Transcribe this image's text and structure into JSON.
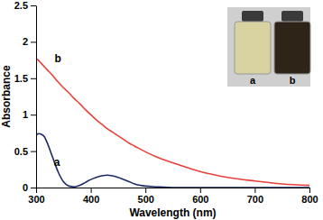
{
  "chart_data": {
    "type": "line",
    "x_label": "Wavelength (nm)",
    "y_label": "Absorbance",
    "x": [
      300,
      305,
      310,
      315,
      320,
      330,
      340,
      350,
      360,
      370,
      380,
      390,
      400,
      410,
      420,
      430,
      440,
      450,
      460,
      470,
      480,
      500,
      520,
      550,
      600,
      650,
      700,
      750,
      800
    ],
    "series": [
      {
        "name": "a",
        "color": "#1c2a66",
        "values": [
          0.72,
          0.74,
          0.73,
          0.7,
          0.62,
          0.42,
          0.22,
          0.08,
          0.02,
          0.01,
          0.03,
          0.07,
          0.11,
          0.14,
          0.16,
          0.17,
          0.16,
          0.14,
          0.11,
          0.08,
          0.05,
          0.02,
          0.01,
          0,
          0,
          0,
          0,
          0,
          0
        ]
      },
      {
        "name": "b",
        "color": "#e8413a",
        "values": [
          1.77,
          1.74,
          1.7,
          1.66,
          1.62,
          1.54,
          1.45,
          1.37,
          1.3,
          1.22,
          1.15,
          1.07,
          1.0,
          0.93,
          0.87,
          0.81,
          0.76,
          0.71,
          0.66,
          0.61,
          0.57,
          0.49,
          0.42,
          0.34,
          0.22,
          0.14,
          0.09,
          0.05,
          0.03
        ]
      }
    ],
    "xlim": [
      300,
      800
    ],
    "xticks": [
      300,
      400,
      500,
      600,
      700,
      800
    ],
    "ylim": [
      0,
      2.5
    ],
    "yticks": [
      0,
      0.5,
      1,
      1.5,
      2,
      2.5
    ],
    "grid": false,
    "annotations": [
      {
        "text": "a",
        "x": 338,
        "y": 0.3
      },
      {
        "text": "b",
        "x": 340,
        "y": 1.72
      }
    ],
    "inset_labels": [
      "a",
      "b"
    ]
  }
}
